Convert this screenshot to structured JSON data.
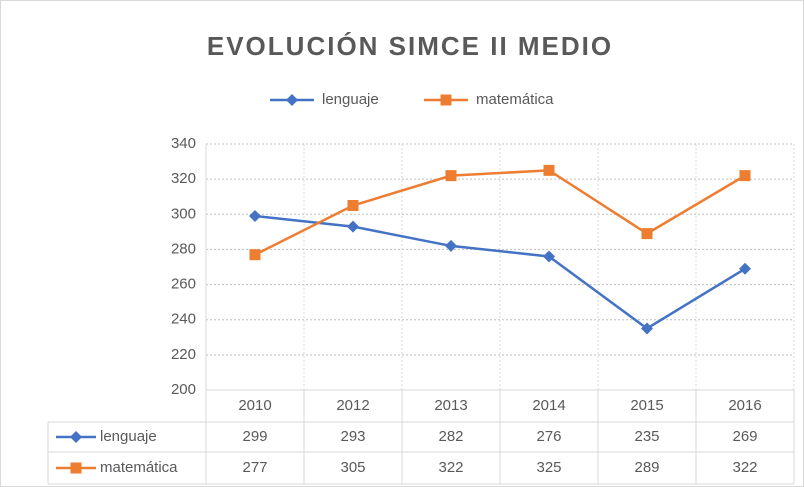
{
  "chart_data": {
    "type": "line",
    "title": "EVOLUCIÓN SIMCE II MEDIO",
    "categories": [
      "2010",
      "2012",
      "2013",
      "2014",
      "2015",
      "2016"
    ],
    "series": [
      {
        "name": "lenguaje",
        "color": "#4472c4",
        "marker": "diamond",
        "values": [
          299,
          293,
          282,
          276,
          235,
          269
        ]
      },
      {
        "name": "matemática",
        "color": "#ed7d31",
        "marker": "square",
        "values": [
          277,
          305,
          322,
          325,
          289,
          322
        ]
      }
    ],
    "ylim": [
      200,
      340
    ],
    "yticks": [
      200,
      220,
      240,
      260,
      280,
      300,
      320,
      340
    ],
    "grid": true,
    "legend": "top",
    "data_table": true
  }
}
